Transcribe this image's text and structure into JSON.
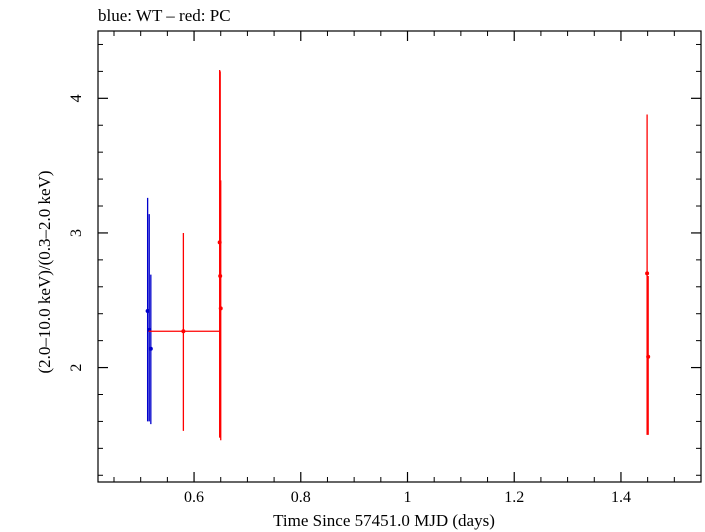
{
  "chart_data": {
    "type": "scatter",
    "title": "blue: WT – red: PC",
    "xlabel": "Time Since 57451.0 MJD (days)",
    "ylabel": "(2.0–10.0 keV)/(0.3–2.0 keV)",
    "xlim": [
      0.42,
      1.55
    ],
    "ylim": [
      1.15,
      4.5
    ],
    "xticks": [
      0.6,
      0.8,
      1.0,
      1.2,
      1.4
    ],
    "xtick_labels": [
      "0.6",
      "0.8",
      "1",
      "1.2",
      "1.4"
    ],
    "yticks": [
      2,
      3,
      4
    ],
    "ytick_labels": [
      "2",
      "3",
      "4"
    ],
    "colors": {
      "WT": "#0000cc",
      "PC": "#ff0000"
    },
    "series": [
      {
        "name": "WT",
        "color": "#0000cc",
        "points": [
          {
            "x": 0.513,
            "y": 2.42,
            "xerr": [
              0.001,
              0.001
            ],
            "yerr": [
              0.82,
              0.84
            ]
          },
          {
            "x": 0.516,
            "y": 2.28,
            "xerr": [
              0.001,
              0.001
            ],
            "yerr": [
              0.68,
              0.86
            ]
          },
          {
            "x": 0.519,
            "y": 2.14,
            "xerr": [
              0.001,
              0.001
            ],
            "yerr": [
              0.56,
              0.55
            ]
          }
        ]
      },
      {
        "name": "PC",
        "color": "#ff0000",
        "points": [
          {
            "x": 0.58,
            "y": 2.27,
            "xerr": [
              0.065,
              0.07
            ],
            "yerr": [
              0.74,
              0.73
            ]
          },
          {
            "x": 0.648,
            "y": 2.93,
            "xerr": [
              0.001,
              0.001
            ],
            "yerr": [
              1.45,
              1.28
            ]
          },
          {
            "x": 0.649,
            "y": 2.68,
            "xerr": [
              0.001,
              0.001
            ],
            "yerr": [
              1.2,
              1.52
            ]
          },
          {
            "x": 0.65,
            "y": 2.44,
            "xerr": [
              0.001,
              0.001
            ],
            "yerr": [
              0.98,
              0.95
            ]
          },
          {
            "x": 1.449,
            "y": 2.7,
            "xerr": [
              0.001,
              0.001
            ],
            "yerr": [
              1.2,
              1.18
            ]
          },
          {
            "x": 1.451,
            "y": 2.08,
            "xerr": [
              0.001,
              0.001
            ],
            "yerr": [
              0.58,
              0.6
            ]
          }
        ]
      }
    ]
  }
}
